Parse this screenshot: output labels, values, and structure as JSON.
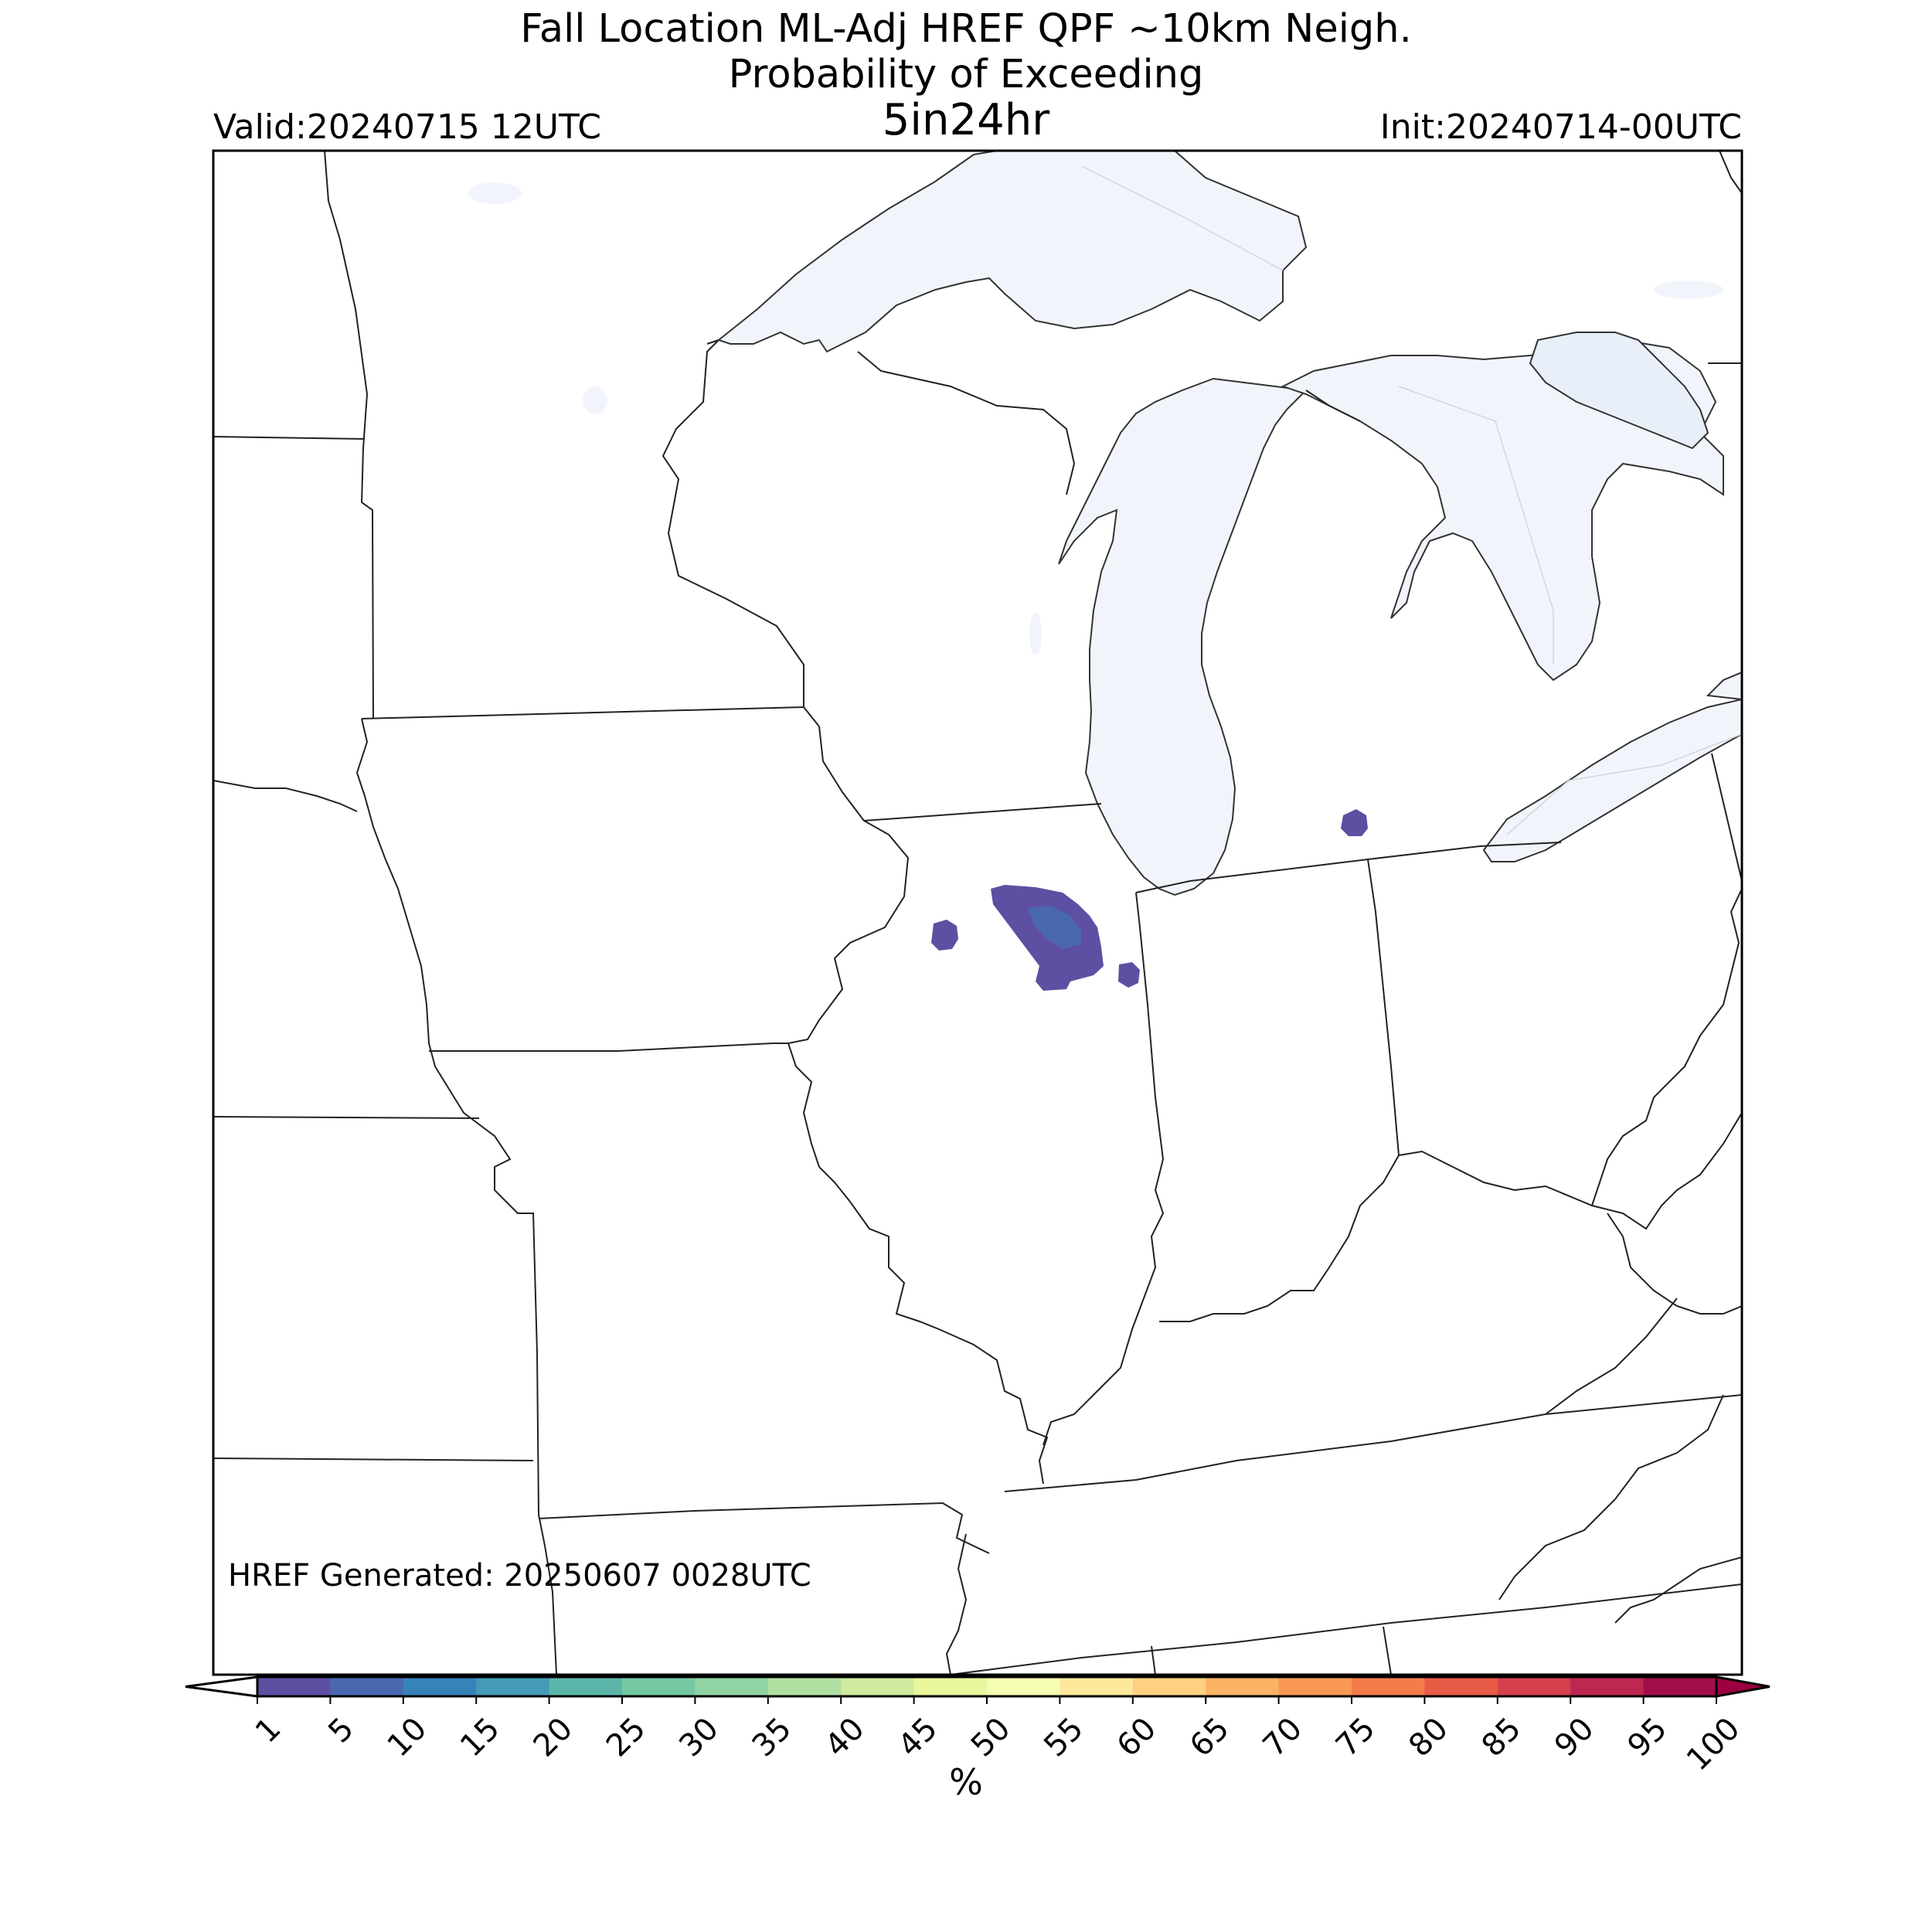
{
  "title": {
    "line1": "Fall Location ML-Adj HREF QPF ~10km Neigh.",
    "line2": "Probability of Exceeding",
    "line3": "5in24hr"
  },
  "valid_label": "Valid:20240715 12UTC",
  "init_label": "Init:20240714-00UTC",
  "generated_label": "HREF Generated: 20250607 0028UTC",
  "colorbar": {
    "unit": "%",
    "extend": "both",
    "ticks": [
      "1",
      "5",
      "10",
      "15",
      "20",
      "25",
      "30",
      "35",
      "40",
      "45",
      "50",
      "55",
      "60",
      "65",
      "70",
      "75",
      "80",
      "85",
      "90",
      "95",
      "100"
    ],
    "colors": [
      "#5e4fa2",
      "#4a68b0",
      "#3682ba",
      "#439bb5",
      "#5bb6a9",
      "#75c8a4",
      "#91d4a4",
      "#b0dfa2",
      "#cfeb9d",
      "#e8f69c",
      "#f7fcb3",
      "#fee89b",
      "#fed081",
      "#fdb365",
      "#fa9856",
      "#f47b4a",
      "#e85b47",
      "#d6404e",
      "#bd2752",
      "#a10f49"
    ],
    "under_color": "#ffffff",
    "over_color": "#9e0142"
  },
  "map": {
    "region": "Upper Midwest / Great Lakes, USA",
    "lake_color": "#f1f5fb",
    "border_color": "#222222",
    "probability_areas": [
      {
        "name": "north-central-illinois",
        "level": "1-5",
        "color": "#5e4fa2"
      },
      {
        "name": "north-central-illinois-core",
        "level": "5-10",
        "color": "#4a68b0"
      },
      {
        "name": "northwest-illinois",
        "level": "1-5",
        "color": "#5e4fa2"
      },
      {
        "name": "illinois-indiana-border",
        "level": "1-5",
        "color": "#5e4fa2"
      },
      {
        "name": "southern-michigan",
        "level": "1-5",
        "color": "#5e4fa2"
      }
    ]
  }
}
